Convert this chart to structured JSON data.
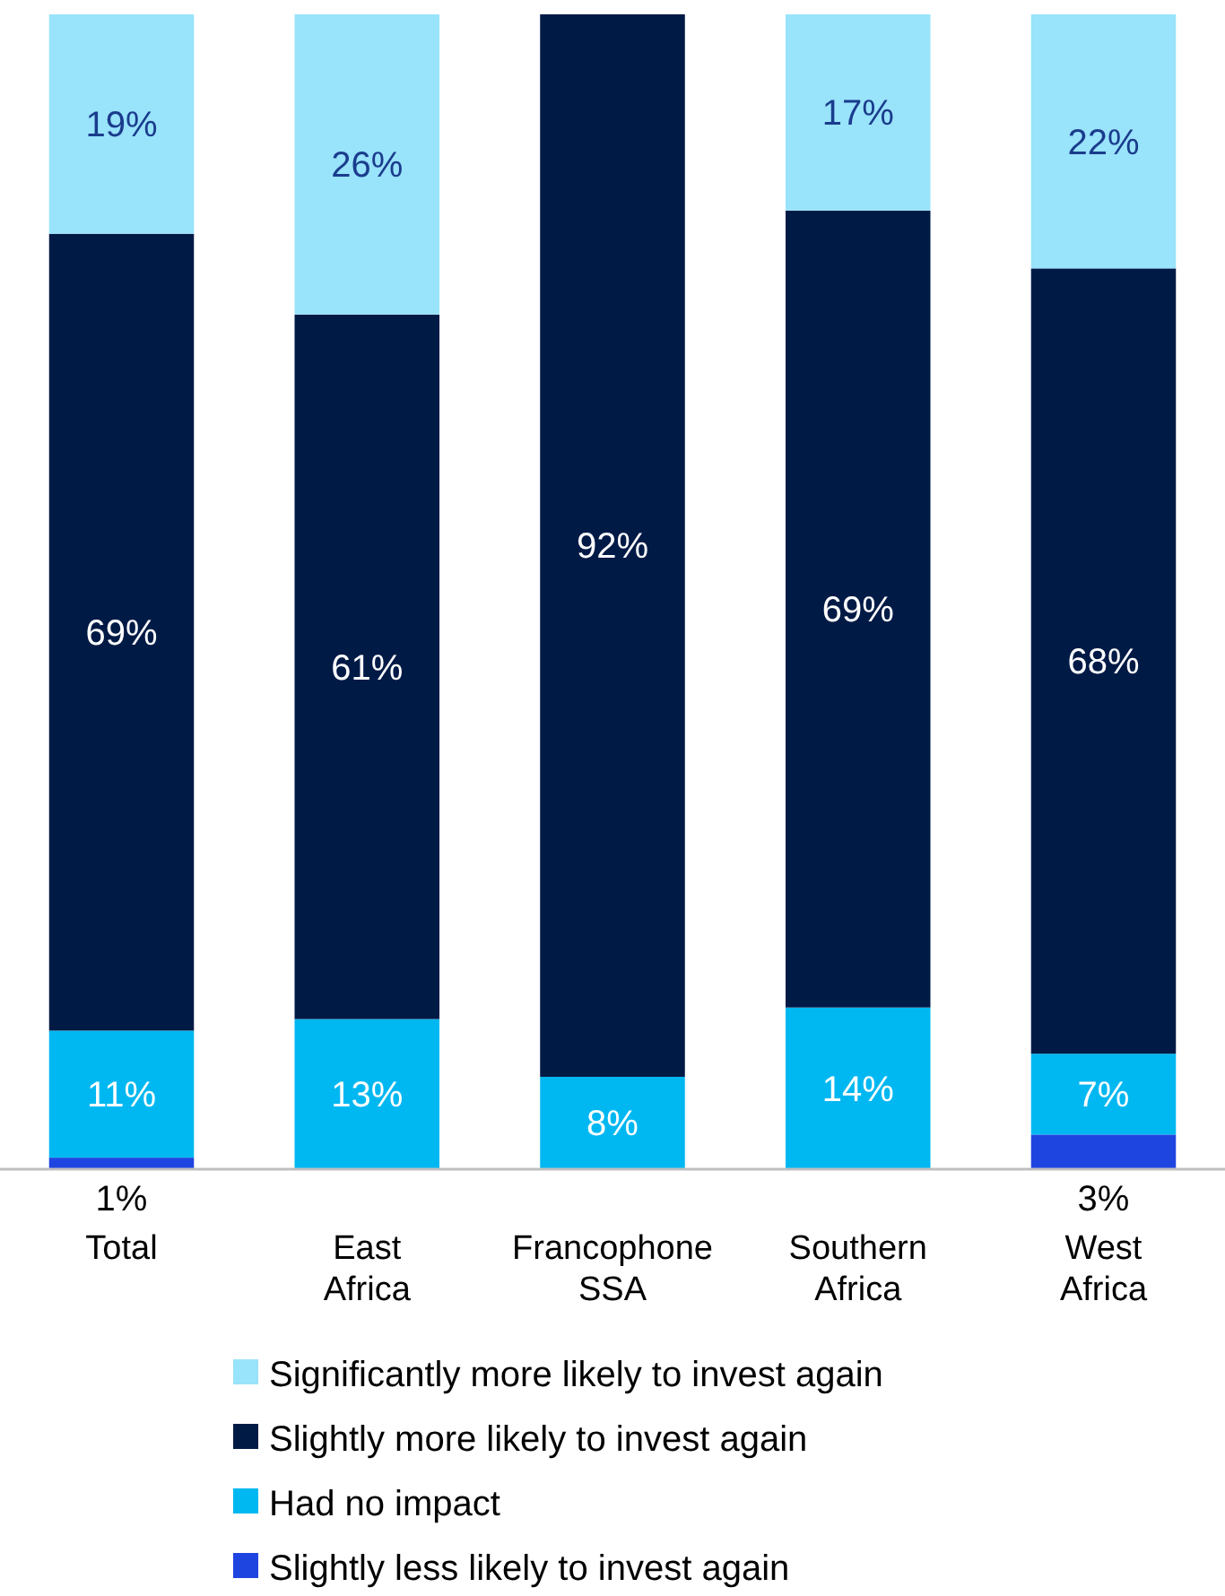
{
  "chart_data": {
    "type": "bar",
    "stacked": true,
    "categories": [
      "Total",
      "East\nAfrica",
      "Francophone\nSSA",
      "Southern\nAfrica",
      "West\nAfrica"
    ],
    "legend": "bottom",
    "series": [
      {
        "name": "Slightly less likely to invest again",
        "color": "#1f45e0",
        "values": [
          1,
          0,
          0,
          0,
          3
        ],
        "value_labels": [
          "1%",
          null,
          null,
          null,
          "3%"
        ]
      },
      {
        "name": "Had no impact",
        "color": "#00b8f1",
        "values": [
          11,
          13,
          8,
          14,
          7
        ],
        "value_labels": [
          "11%",
          "13%",
          "8%",
          "14%",
          "7%"
        ]
      },
      {
        "name": "Slightly more likely to invest again",
        "color": "#001a46",
        "values": [
          69,
          61,
          92,
          69,
          68
        ],
        "value_labels": [
          "69%",
          "61%",
          "92%",
          "69%",
          "68%"
        ]
      },
      {
        "name": "Significantly more likely to invest again",
        "color": "#99e3fb",
        "values": [
          19,
          26,
          0,
          17,
          22
        ],
        "value_labels": [
          "19%",
          "26%",
          null,
          "17%",
          "22%"
        ]
      }
    ]
  }
}
